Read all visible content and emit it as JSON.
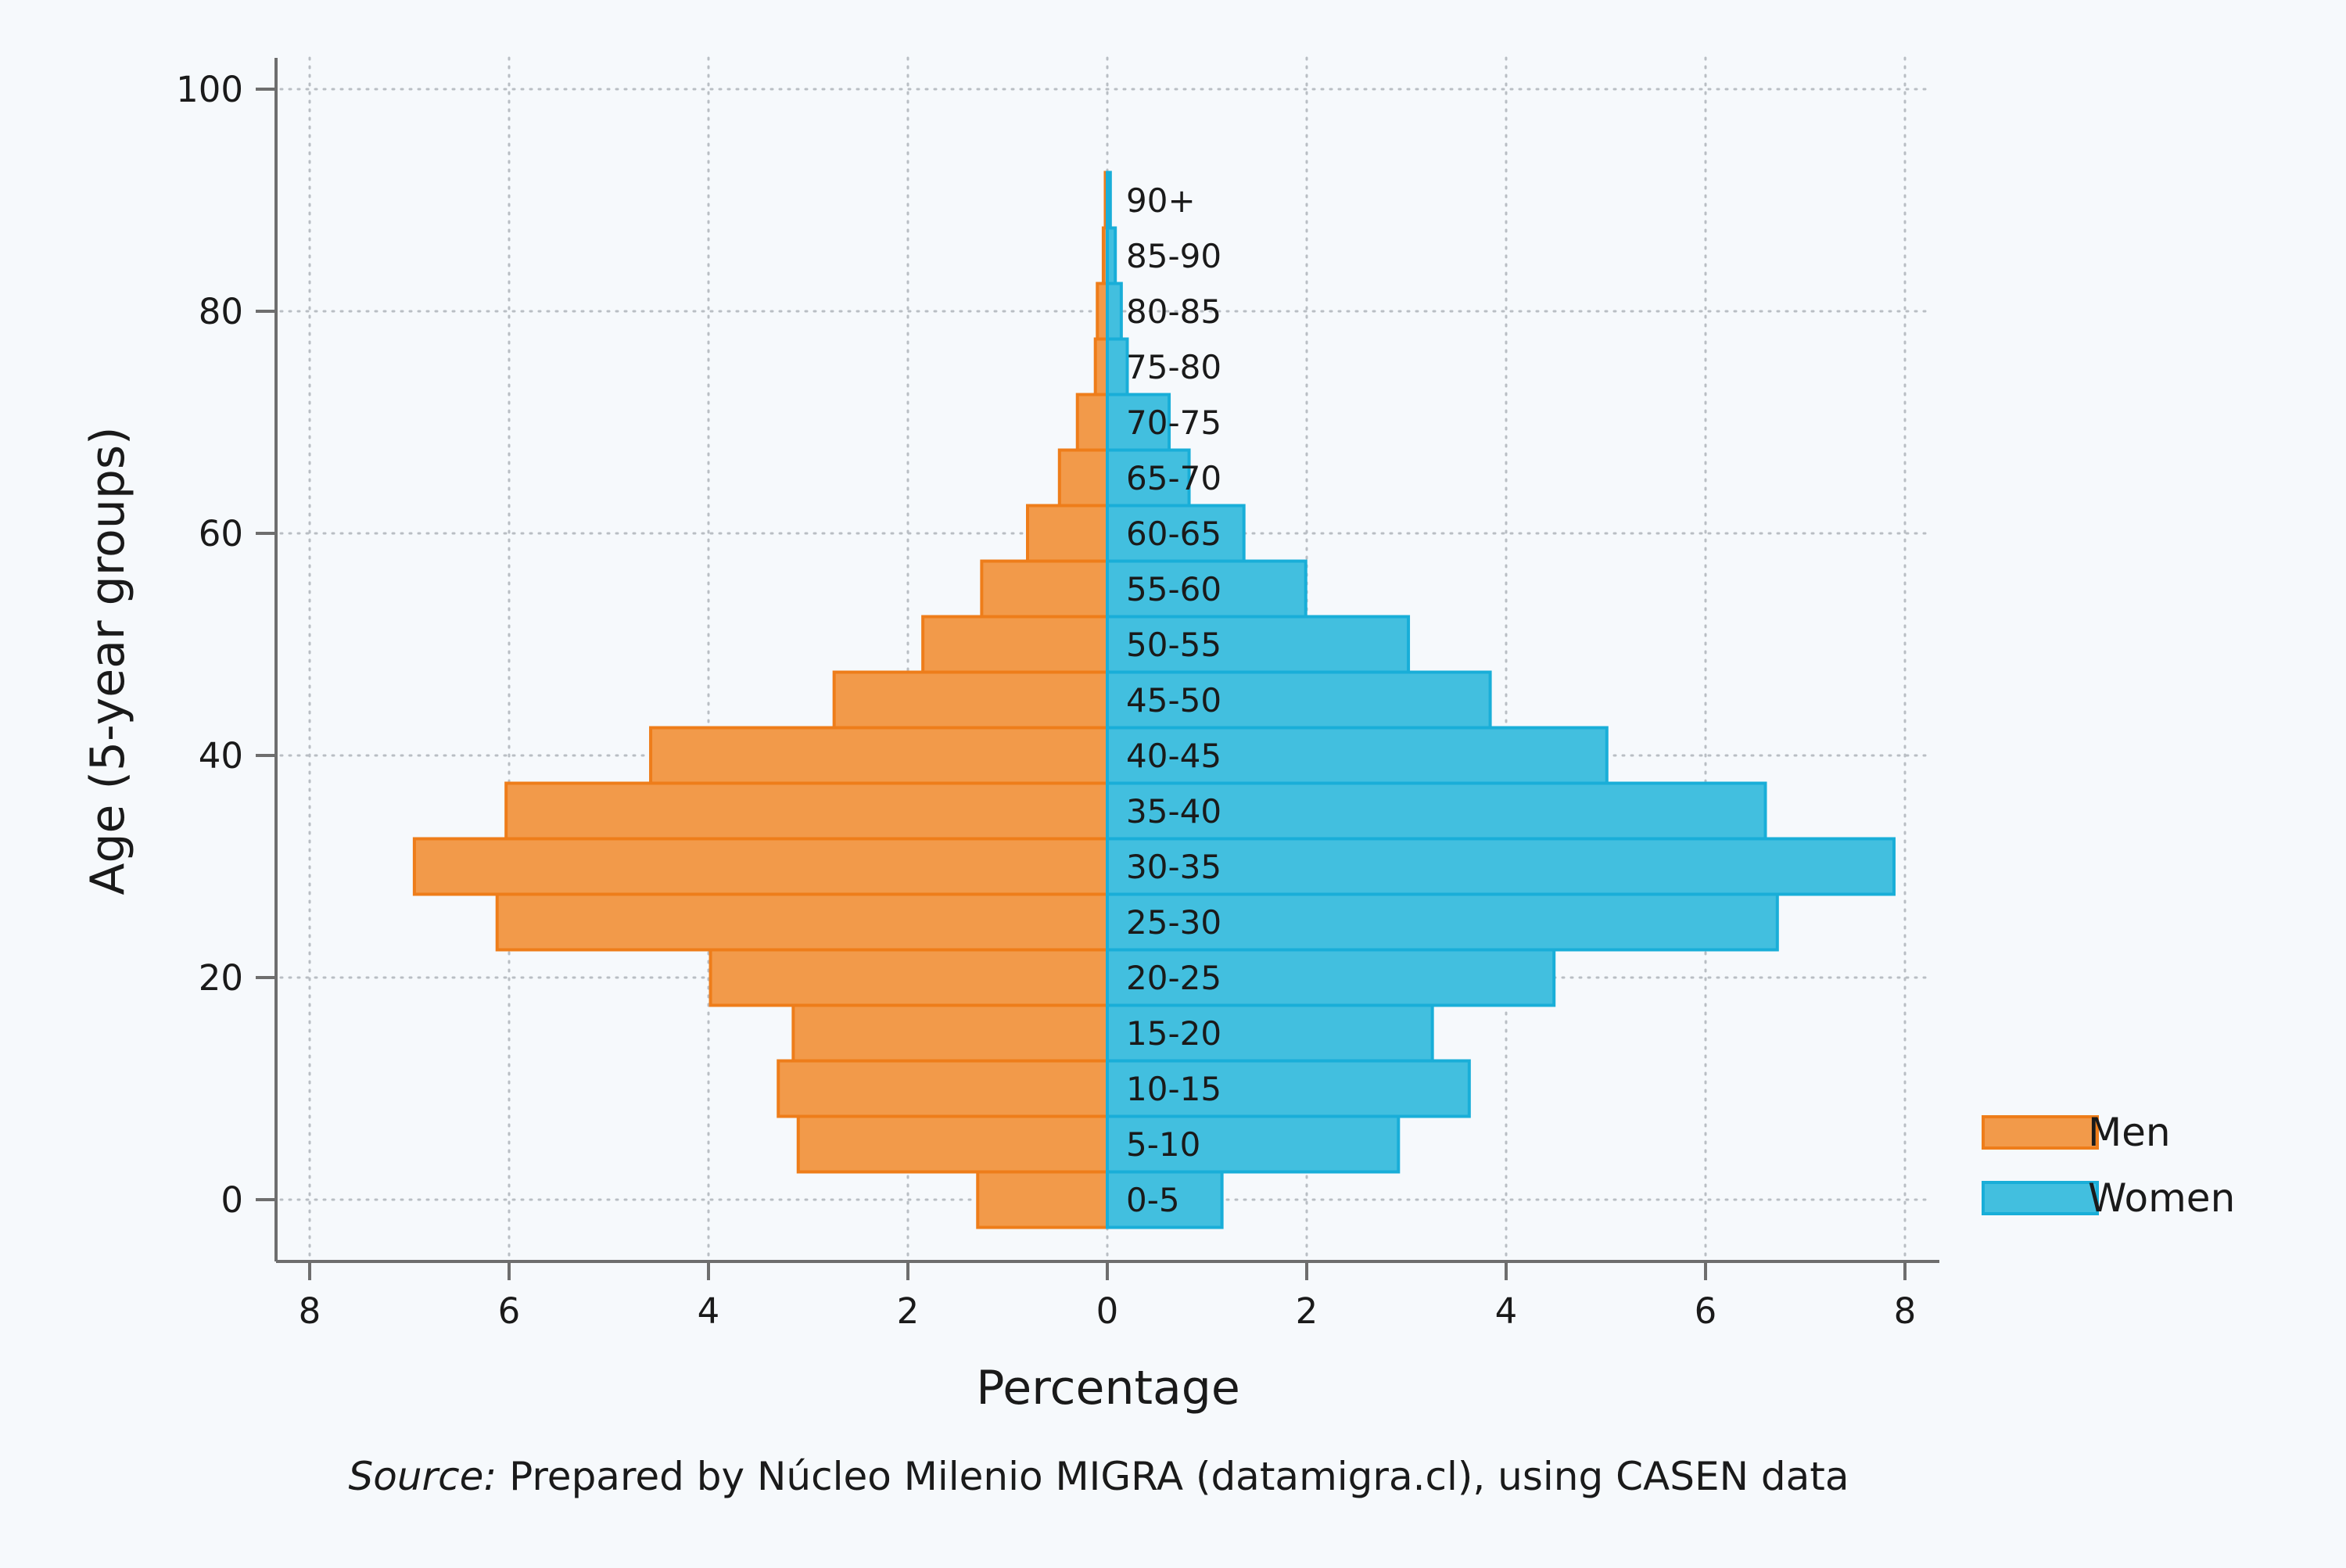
{
  "chart_data": {
    "type": "bar",
    "orientation": "horizontal-pyramid",
    "xlabel": "Percentage",
    "ylabel": "Age (5-year groups)",
    "xlim": [
      -8,
      8
    ],
    "ylim": [
      0,
      100
    ],
    "x_ticks": [
      -8,
      -6,
      -4,
      -2,
      0,
      2,
      4,
      6,
      8
    ],
    "x_tick_labels": [
      "8",
      "6",
      "4",
      "2",
      "0",
      "2",
      "4",
      "6",
      "8"
    ],
    "y_ticks": [
      0,
      20,
      40,
      60,
      80,
      100
    ],
    "y_tick_labels": [
      "0",
      "20",
      "40",
      "60",
      "80",
      "100"
    ],
    "grid": true,
    "legend_position": "right",
    "categories": [
      "0-5",
      "5-10",
      "10-15",
      "15-20",
      "20-25",
      "25-30",
      "30-35",
      "35-40",
      "40-45",
      "45-50",
      "50-55",
      "55-60",
      "60-65",
      "65-70",
      "70-75",
      "75-80",
      "80-85",
      "85-90",
      "90+"
    ],
    "series": [
      {
        "name": "Men",
        "color": "#f29a4a",
        "edge_color": "#ee7d1a",
        "values": [
          1.3,
          3.1,
          3.3,
          3.15,
          3.98,
          6.12,
          6.95,
          6.03,
          4.58,
          2.74,
          1.85,
          1.26,
          0.8,
          0.48,
          0.3,
          0.12,
          0.1,
          0.04,
          0.02
        ]
      },
      {
        "name": "Women",
        "color": "#42bfdf",
        "edge_color": "#19aed8",
        "values": [
          1.15,
          2.92,
          3.63,
          3.26,
          4.48,
          6.72,
          7.89,
          6.6,
          5.01,
          3.84,
          3.02,
          1.99,
          1.37,
          0.82,
          0.62,
          0.2,
          0.14,
          0.08,
          0.03
        ]
      }
    ],
    "source_prefix": "Source:",
    "source_text": " Prepared by Núcleo Milenio MIGRA (datamigra.cl), using CASEN data"
  },
  "colors": {
    "background": "#f6f9fc",
    "axis": "#6e6e6e",
    "grid": "#b9bec4",
    "text": "#1a1a1a"
  }
}
